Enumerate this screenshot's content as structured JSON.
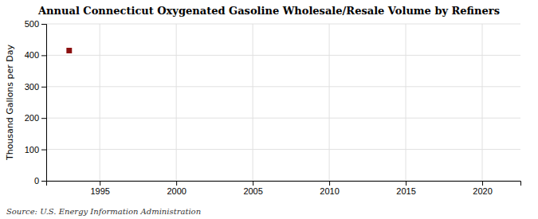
{
  "chart_data": {
    "type": "scatter",
    "title": "Annual Connecticut Oxygenated Gasoline Wholesale/Resale Volume by Refiners",
    "ylabel": "Thousand Gallons per Day",
    "source": "Source: U.S. Energy Information Administration",
    "x": [
      1993
    ],
    "values": [
      415
    ],
    "color": "#8b1010",
    "marker": "square",
    "xlim": [
      1991.5,
      2022.5
    ],
    "ylim": [
      0,
      500
    ],
    "xticks": [
      1995,
      2000,
      2005,
      2010,
      2015,
      2020
    ],
    "yticks": [
      0,
      100,
      200,
      300,
      400,
      500
    ],
    "grid": true
  }
}
